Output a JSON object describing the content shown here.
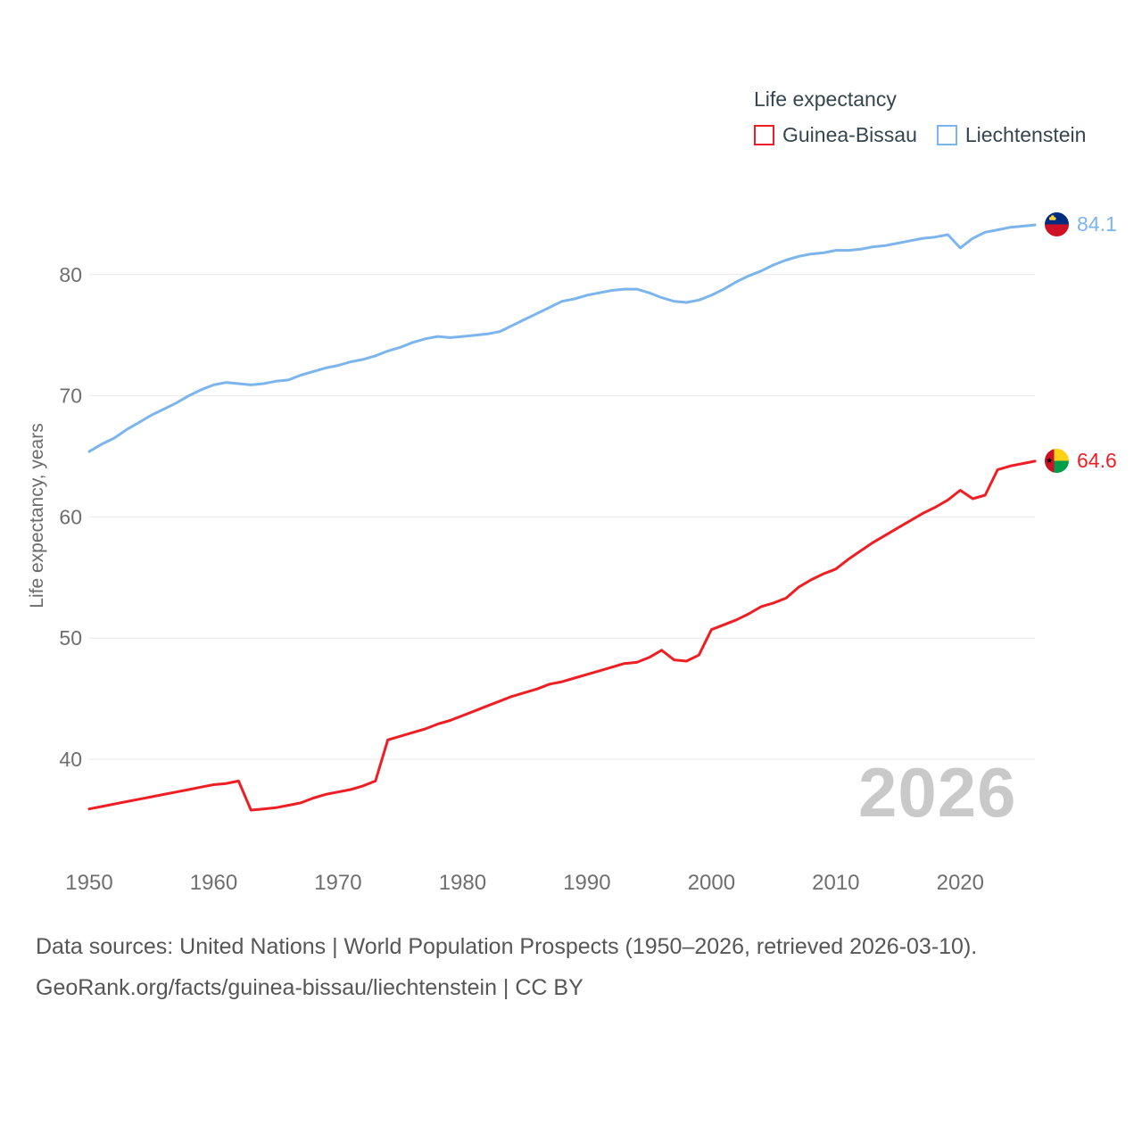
{
  "legend": {
    "title": "Life expectancy"
  },
  "watermark": "2026",
  "footer": {
    "line1": "Data sources: United Nations | World Population Prospects (1950–2026, retrieved 2026-03-10).",
    "line2": "GeoRank.org/facts/guinea-bissau/liechtenstein | CC BY"
  },
  "chart_data": {
    "type": "line",
    "title": "Life expectancy",
    "xlabel": "",
    "ylabel": "Life expectancy, years",
    "xlim": [
      1950,
      2026
    ],
    "ylim": [
      34,
      87
    ],
    "x_ticks": [
      1950,
      1960,
      1970,
      1980,
      1990,
      2000,
      2010,
      2020
    ],
    "y_ticks": [
      40,
      50,
      60,
      70,
      80
    ],
    "grid": "horizontal",
    "legend_position": "top-right",
    "years": [
      1950,
      1951,
      1952,
      1953,
      1954,
      1955,
      1956,
      1957,
      1958,
      1959,
      1960,
      1961,
      1962,
      1963,
      1964,
      1965,
      1966,
      1967,
      1968,
      1969,
      1970,
      1971,
      1972,
      1973,
      1974,
      1975,
      1976,
      1977,
      1978,
      1979,
      1980,
      1981,
      1982,
      1983,
      1984,
      1985,
      1986,
      1987,
      1988,
      1989,
      1990,
      1991,
      1992,
      1993,
      1994,
      1995,
      1996,
      1997,
      1998,
      1999,
      2000,
      2001,
      2002,
      2003,
      2004,
      2005,
      2006,
      2007,
      2008,
      2009,
      2010,
      2011,
      2012,
      2013,
      2014,
      2015,
      2016,
      2017,
      2018,
      2019,
      2020,
      2021,
      2022,
      2023,
      2024,
      2025,
      2026
    ],
    "series": [
      {
        "name": "Guinea-Bissau",
        "color": "#ed1f24",
        "end_label": "64.6",
        "flag": "guinea-bissau",
        "values": [
          35.9,
          36.1,
          36.3,
          36.5,
          36.7,
          36.9,
          37.1,
          37.3,
          37.5,
          37.7,
          37.9,
          38.0,
          38.2,
          35.8,
          35.9,
          36.0,
          36.2,
          36.4,
          36.8,
          37.1,
          37.3,
          37.5,
          37.8,
          38.2,
          41.6,
          41.9,
          42.2,
          42.5,
          42.9,
          43.2,
          43.6,
          44.0,
          44.4,
          44.8,
          45.2,
          45.5,
          45.8,
          46.2,
          46.4,
          46.7,
          47.0,
          47.3,
          47.6,
          47.9,
          48.0,
          48.4,
          49.0,
          48.2,
          48.1,
          48.6,
          50.7,
          51.1,
          51.5,
          52.0,
          52.6,
          52.9,
          53.3,
          54.2,
          54.8,
          55.3,
          55.7,
          56.5,
          57.2,
          57.9,
          58.5,
          59.1,
          59.7,
          60.3,
          60.8,
          61.4,
          62.2,
          61.5,
          61.8,
          63.9,
          64.2,
          64.4,
          64.6
        ]
      },
      {
        "name": "Liechtenstein",
        "color": "#7cb5ec",
        "end_label": "84.1",
        "flag": "liechtenstein",
        "values": [
          65.4,
          66.0,
          66.5,
          67.2,
          67.8,
          68.4,
          68.9,
          69.4,
          70.0,
          70.5,
          70.9,
          71.1,
          71.0,
          70.9,
          71.0,
          71.2,
          71.3,
          71.7,
          72.0,
          72.3,
          72.5,
          72.8,
          73.0,
          73.3,
          73.7,
          74.0,
          74.4,
          74.7,
          74.9,
          74.8,
          74.9,
          75.0,
          75.1,
          75.3,
          75.8,
          76.3,
          76.8,
          77.3,
          77.8,
          78.0,
          78.3,
          78.5,
          78.7,
          78.8,
          78.8,
          78.5,
          78.1,
          77.8,
          77.7,
          77.9,
          78.3,
          78.8,
          79.4,
          79.9,
          80.3,
          80.8,
          81.2,
          81.5,
          81.7,
          81.8,
          82.0,
          82.0,
          82.1,
          82.3,
          82.4,
          82.6,
          82.8,
          83.0,
          83.1,
          83.3,
          82.2,
          83.0,
          83.5,
          83.7,
          83.9,
          84.0,
          84.1
        ]
      }
    ]
  }
}
